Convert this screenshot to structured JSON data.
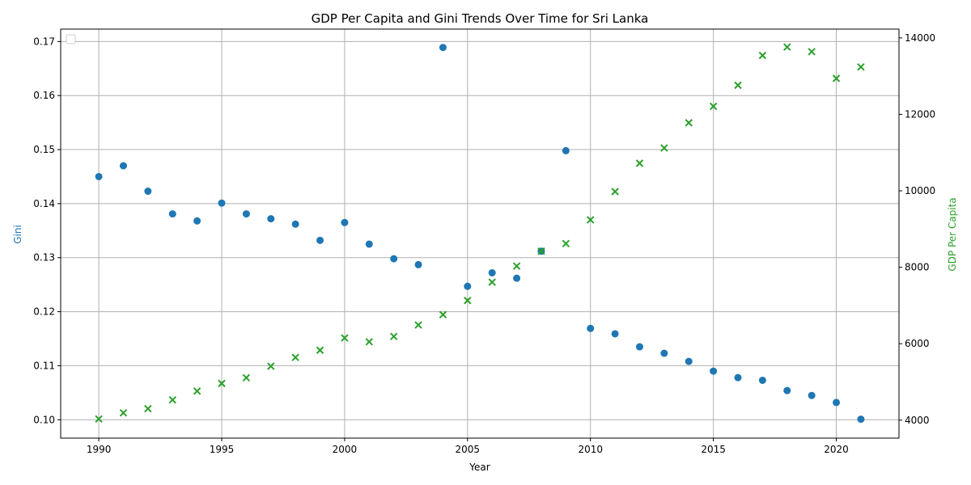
{
  "chart_data": {
    "type": "scatter",
    "title": "GDP Per Capita and Gini Trends Over Time for Sri Lanka",
    "xlabel": "Year",
    "ylabel_left": "Gini",
    "ylabel_right": "GDP Per Capita",
    "xlim": [
      1988.45,
      2022.55
    ],
    "ylim_left": [
      0.0966,
      0.1723
    ],
    "ylim_right": [
      3530,
      14230
    ],
    "x_ticks": [
      1990,
      1995,
      2000,
      2005,
      2010,
      2015,
      2020
    ],
    "y_ticks_left": [
      0.1,
      0.11,
      0.12,
      0.13,
      0.14,
      0.15,
      0.16,
      0.17
    ],
    "y_tick_labels_left": [
      "0.10",
      "0.11",
      "0.12",
      "0.13",
      "0.14",
      "0.15",
      "0.16",
      "0.17"
    ],
    "y_ticks_right": [
      4000,
      6000,
      8000,
      10000,
      12000,
      14000
    ],
    "grid": true,
    "legend_location": "upper-left",
    "series": [
      {
        "axis": "left",
        "marker": "circle",
        "color": "#1f77b4",
        "x": [
          1990,
          1991,
          1992,
          1993,
          1994,
          1995,
          1996,
          1997,
          1998,
          1999,
          2000,
          2001,
          2002,
          2003,
          2004,
          2005,
          2006,
          2007,
          2008,
          2009,
          2010,
          2011,
          2012,
          2013,
          2014,
          2015,
          2016,
          2017,
          2018,
          2019,
          2020,
          2021
        ],
        "y": [
          0.145,
          0.147,
          0.1423,
          0.1381,
          0.1368,
          0.1401,
          0.1381,
          0.1372,
          0.1362,
          0.1332,
          0.1365,
          0.1325,
          0.1298,
          0.1287,
          0.1689,
          0.1247,
          0.1272,
          0.1262,
          0.1312,
          0.1498,
          0.1169,
          0.1159,
          0.1135,
          0.1123,
          0.1108,
          0.109,
          0.1078,
          0.1073,
          0.1054,
          0.1045,
          0.1032,
          0.1001
        ]
      },
      {
        "axis": "right",
        "marker": "x",
        "color": "#2ca02c",
        "x": [
          1990,
          1991,
          1992,
          1993,
          1994,
          1995,
          1996,
          1997,
          1998,
          1999,
          2000,
          2001,
          2002,
          2003,
          2004,
          2005,
          2006,
          2007,
          2008,
          2009,
          2010,
          2011,
          2012,
          2013,
          2014,
          2015,
          2016,
          2017,
          2018,
          2019,
          2020,
          2021
        ],
        "y": [
          4030,
          4190,
          4300,
          4530,
          4760,
          4960,
          5110,
          5410,
          5640,
          5830,
          6150,
          6050,
          6190,
          6490,
          6760,
          7130,
          7610,
          8030,
          8420,
          8620,
          9240,
          9980,
          10720,
          11120,
          11780,
          12210,
          12760,
          13540,
          13760,
          13640,
          12940,
          13240
        ]
      }
    ]
  }
}
